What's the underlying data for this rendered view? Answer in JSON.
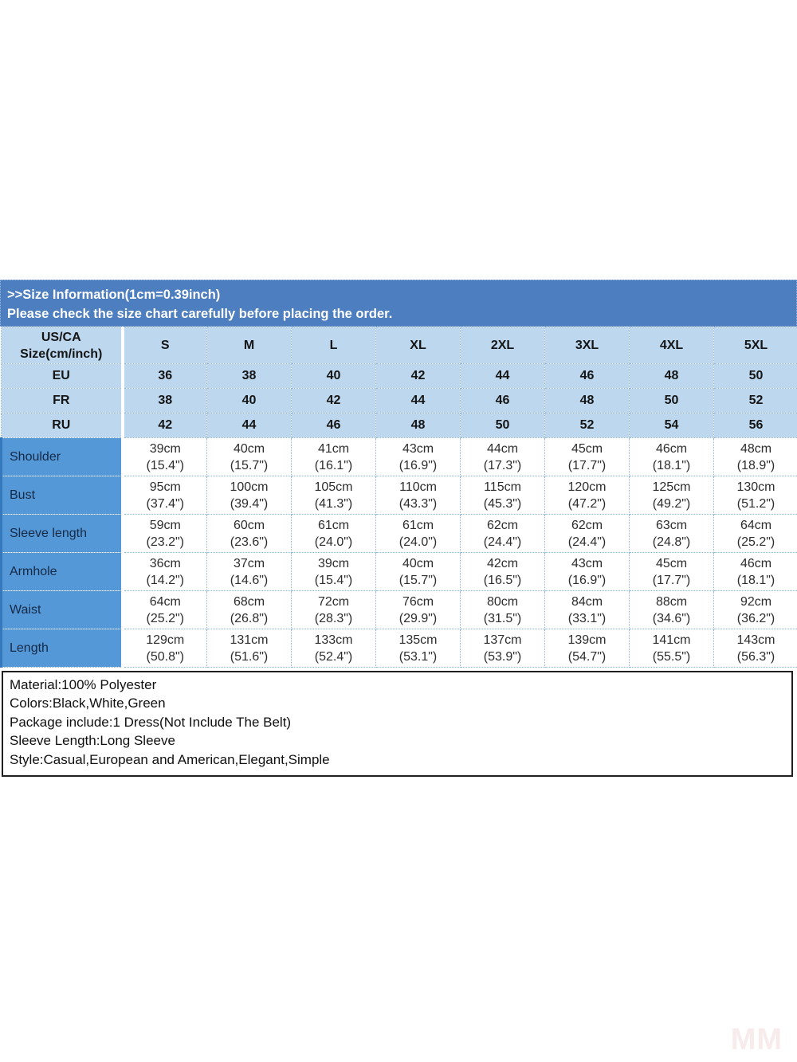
{
  "banner": {
    "line1": ">>Size Information(1cm=0.39inch)",
    "line2": "Please check the size chart carefully before placing the order."
  },
  "size_table": {
    "corner_label_line1": "US/CA",
    "corner_label_line2": "Size(cm/inch)",
    "size_labels": [
      "S",
      "M",
      "L",
      "XL",
      "2XL",
      "3XL",
      "4XL",
      "5XL"
    ],
    "region_rows": [
      {
        "label": "EU",
        "values": [
          "36",
          "38",
          "40",
          "42",
          "44",
          "46",
          "48",
          "50"
        ]
      },
      {
        "label": "FR",
        "values": [
          "38",
          "40",
          "42",
          "44",
          "46",
          "48",
          "50",
          "52"
        ]
      },
      {
        "label": "RU",
        "values": [
          "42",
          "44",
          "46",
          "48",
          "50",
          "52",
          "54",
          "56"
        ]
      }
    ],
    "measurement_rows": [
      {
        "label": "Shoulder",
        "values": [
          {
            "cm": "39cm",
            "in": "(15.4\")"
          },
          {
            "cm": "40cm",
            "in": "(15.7\")"
          },
          {
            "cm": "41cm",
            "in": "(16.1\")"
          },
          {
            "cm": "43cm",
            "in": "(16.9\")"
          },
          {
            "cm": "44cm",
            "in": "(17.3\")"
          },
          {
            "cm": "45cm",
            "in": "(17.7\")"
          },
          {
            "cm": "46cm",
            "in": "(18.1\")"
          },
          {
            "cm": "48cm",
            "in": "(18.9\")"
          }
        ]
      },
      {
        "label": "Bust",
        "values": [
          {
            "cm": "95cm",
            "in": "(37.4\")"
          },
          {
            "cm": "100cm",
            "in": "(39.4\")"
          },
          {
            "cm": "105cm",
            "in": "(41.3\")"
          },
          {
            "cm": "110cm",
            "in": "(43.3\")"
          },
          {
            "cm": "115cm",
            "in": "(45.3\")"
          },
          {
            "cm": "120cm",
            "in": "(47.2\")"
          },
          {
            "cm": "125cm",
            "in": "(49.2\")"
          },
          {
            "cm": "130cm",
            "in": "(51.2\")"
          }
        ]
      },
      {
        "label": "Sleeve length",
        "values": [
          {
            "cm": "59cm",
            "in": "(23.2\")"
          },
          {
            "cm": "60cm",
            "in": "(23.6\")"
          },
          {
            "cm": "61cm",
            "in": "(24.0\")"
          },
          {
            "cm": "61cm",
            "in": "(24.0\")"
          },
          {
            "cm": "62cm",
            "in": "(24.4\")"
          },
          {
            "cm": "62cm",
            "in": "(24.4\")"
          },
          {
            "cm": "63cm",
            "in": "(24.8\")"
          },
          {
            "cm": "64cm",
            "in": "(25.2\")"
          }
        ]
      },
      {
        "label": "Armhole",
        "values": [
          {
            "cm": "36cm",
            "in": "(14.2\")"
          },
          {
            "cm": "37cm",
            "in": "(14.6\")"
          },
          {
            "cm": "39cm",
            "in": "(15.4\")"
          },
          {
            "cm": "40cm",
            "in": "(15.7\")"
          },
          {
            "cm": "42cm",
            "in": "(16.5\")"
          },
          {
            "cm": "43cm",
            "in": "(16.9\")"
          },
          {
            "cm": "45cm",
            "in": "(17.7\")"
          },
          {
            "cm": "46cm",
            "in": "(18.1\")"
          }
        ]
      },
      {
        "label": "Waist",
        "values": [
          {
            "cm": "64cm",
            "in": "(25.2\")"
          },
          {
            "cm": "68cm",
            "in": "(26.8\")"
          },
          {
            "cm": "72cm",
            "in": "(28.3\")"
          },
          {
            "cm": "76cm",
            "in": "(29.9\")"
          },
          {
            "cm": "80cm",
            "in": "(31.5\")"
          },
          {
            "cm": "84cm",
            "in": "(33.1\")"
          },
          {
            "cm": "88cm",
            "in": "(34.6\")"
          },
          {
            "cm": "92cm",
            "in": "(36.2\")"
          }
        ]
      },
      {
        "label": "Length",
        "values": [
          {
            "cm": "129cm",
            "in": "(50.8\")"
          },
          {
            "cm": "131cm",
            "in": "(51.6\")"
          },
          {
            "cm": "133cm",
            "in": "(52.4\")"
          },
          {
            "cm": "135cm",
            "in": "(53.1\")"
          },
          {
            "cm": "137cm",
            "in": "(53.9\")"
          },
          {
            "cm": "139cm",
            "in": "(54.7\")"
          },
          {
            "cm": "141cm",
            "in": "(55.5\")"
          },
          {
            "cm": "143cm",
            "in": "(56.3\")"
          }
        ]
      }
    ]
  },
  "product_info": {
    "lines": [
      "Material:100% Polyester",
      "Colors:Black,White,Green",
      "Package include:1 Dress(Not Include The Belt)",
      "Sleeve Length:Long Sleeve",
      "Style:Casual,European and American,Elegant,Simple"
    ]
  },
  "watermark": "MM",
  "colors": {
    "banner_bg": "#4d7ebf",
    "header_row_bg": "#bdd7ee",
    "label_column_bg": "#5598d8",
    "grid_line": "#8fb4de",
    "info_border": "#1f1f1f",
    "watermark": "#f7eceb"
  }
}
